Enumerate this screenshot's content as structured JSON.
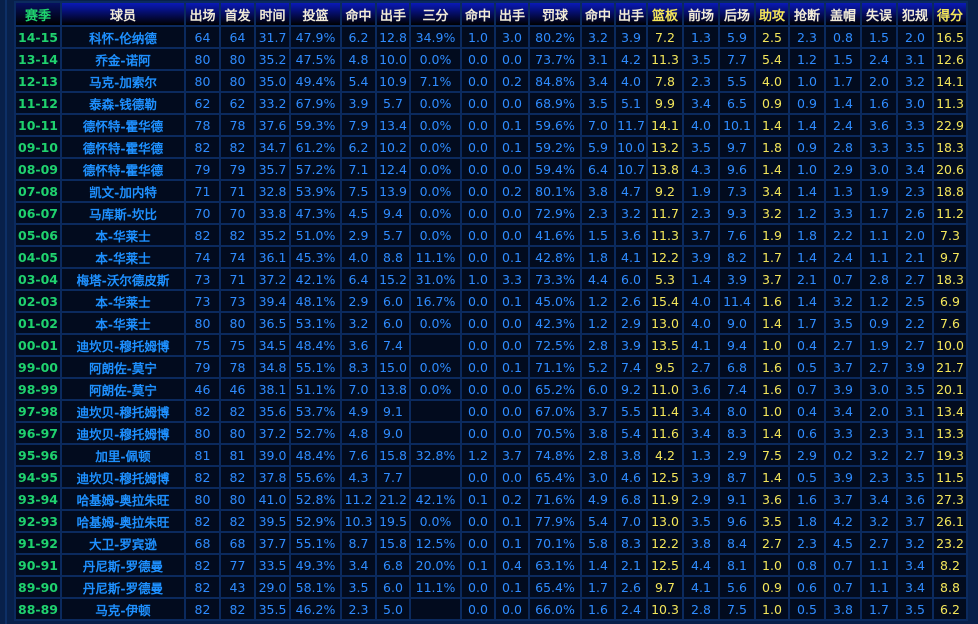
{
  "colors": {
    "season": "#1fd26e",
    "player": "#1e90ff",
    "number": "#2f8cff",
    "highlight": "#f4e65a",
    "background": "#020b1e",
    "grid": "#0b2a5e"
  },
  "table": {
    "headers": [
      "赛季",
      "球员",
      "出场",
      "首发",
      "时间",
      "投篮",
      "命中",
      "出手",
      "三分",
      "命中",
      "出手",
      "罚球",
      "命中",
      "出手",
      "篮板",
      "前场",
      "后场",
      "助攻",
      "抢断",
      "盖帽",
      "失误",
      "犯规",
      "得分"
    ],
    "highlight_columns": [
      "篮板",
      "助攻",
      "得分"
    ],
    "rows": [
      [
        "14-15",
        "科怀-伦纳德",
        "64",
        "64",
        "31.7",
        "47.9%",
        "6.2",
        "12.8",
        "34.9%",
        "1.0",
        "3.0",
        "80.2%",
        "3.2",
        "3.9",
        "7.2",
        "1.3",
        "5.9",
        "2.5",
        "2.3",
        "0.8",
        "1.5",
        "2.0",
        "16.5"
      ],
      [
        "13-14",
        "乔金-诺阿",
        "80",
        "80",
        "35.2",
        "47.5%",
        "4.8",
        "10.0",
        "0.0%",
        "0.0",
        "0.0",
        "73.7%",
        "3.1",
        "4.2",
        "11.3",
        "3.5",
        "7.7",
        "5.4",
        "1.2",
        "1.5",
        "2.4",
        "3.1",
        "12.6"
      ],
      [
        "12-13",
        "马克-加索尔",
        "80",
        "80",
        "35.0",
        "49.4%",
        "5.4",
        "10.9",
        "7.1%",
        "0.0",
        "0.2",
        "84.8%",
        "3.4",
        "4.0",
        "7.8",
        "2.3",
        "5.5",
        "4.0",
        "1.0",
        "1.7",
        "2.0",
        "3.2",
        "14.1"
      ],
      [
        "11-12",
        "泰森-钱德勒",
        "62",
        "62",
        "33.2",
        "67.9%",
        "3.9",
        "5.7",
        "0.0%",
        "0.0",
        "0.0",
        "68.9%",
        "3.5",
        "5.1",
        "9.9",
        "3.4",
        "6.5",
        "0.9",
        "0.9",
        "1.4",
        "1.6",
        "3.0",
        "11.3"
      ],
      [
        "10-11",
        "德怀特-霍华德",
        "78",
        "78",
        "37.6",
        "59.3%",
        "7.9",
        "13.4",
        "0.0%",
        "0.0",
        "0.1",
        "59.6%",
        "7.0",
        "11.7",
        "14.1",
        "4.0",
        "10.1",
        "1.4",
        "1.4",
        "2.4",
        "3.6",
        "3.3",
        "22.9"
      ],
      [
        "09-10",
        "德怀特-霍华德",
        "82",
        "82",
        "34.7",
        "61.2%",
        "6.2",
        "10.2",
        "0.0%",
        "0.0",
        "0.1",
        "59.2%",
        "5.9",
        "10.0",
        "13.2",
        "3.5",
        "9.7",
        "1.8",
        "0.9",
        "2.8",
        "3.3",
        "3.5",
        "18.3"
      ],
      [
        "08-09",
        "德怀特-霍华德",
        "79",
        "79",
        "35.7",
        "57.2%",
        "7.1",
        "12.4",
        "0.0%",
        "0.0",
        "0.0",
        "59.4%",
        "6.4",
        "10.7",
        "13.8",
        "4.3",
        "9.6",
        "1.4",
        "1.0",
        "2.9",
        "3.0",
        "3.4",
        "20.6"
      ],
      [
        "07-08",
        "凯文-加内特",
        "71",
        "71",
        "32.8",
        "53.9%",
        "7.5",
        "13.9",
        "0.0%",
        "0.0",
        "0.2",
        "80.1%",
        "3.8",
        "4.7",
        "9.2",
        "1.9",
        "7.3",
        "3.4",
        "1.4",
        "1.3",
        "1.9",
        "2.3",
        "18.8"
      ],
      [
        "06-07",
        "马库斯-坎比",
        "70",
        "70",
        "33.8",
        "47.3%",
        "4.5",
        "9.4",
        "0.0%",
        "0.0",
        "0.0",
        "72.9%",
        "2.3",
        "3.2",
        "11.7",
        "2.3",
        "9.3",
        "3.2",
        "1.2",
        "3.3",
        "1.7",
        "2.6",
        "11.2"
      ],
      [
        "05-06",
        "本-华莱士",
        "82",
        "82",
        "35.2",
        "51.0%",
        "2.9",
        "5.7",
        "0.0%",
        "0.0",
        "0.0",
        "41.6%",
        "1.5",
        "3.6",
        "11.3",
        "3.7",
        "7.6",
        "1.9",
        "1.8",
        "2.2",
        "1.1",
        "2.0",
        "7.3"
      ],
      [
        "04-05",
        "本-华莱士",
        "74",
        "74",
        "36.1",
        "45.3%",
        "4.0",
        "8.8",
        "11.1%",
        "0.0",
        "0.1",
        "42.8%",
        "1.8",
        "4.1",
        "12.2",
        "3.9",
        "8.2",
        "1.7",
        "1.4",
        "2.4",
        "1.1",
        "2.1",
        "9.7"
      ],
      [
        "03-04",
        "梅塔-沃尔德皮斯",
        "73",
        "71",
        "37.2",
        "42.1%",
        "6.4",
        "15.2",
        "31.0%",
        "1.0",
        "3.3",
        "73.3%",
        "4.4",
        "6.0",
        "5.3",
        "1.4",
        "3.9",
        "3.7",
        "2.1",
        "0.7",
        "2.8",
        "2.7",
        "18.3"
      ],
      [
        "02-03",
        "本-华莱士",
        "73",
        "73",
        "39.4",
        "48.1%",
        "2.9",
        "6.0",
        "16.7%",
        "0.0",
        "0.1",
        "45.0%",
        "1.2",
        "2.6",
        "15.4",
        "4.0",
        "11.4",
        "1.6",
        "1.4",
        "3.2",
        "1.2",
        "2.5",
        "6.9"
      ],
      [
        "01-02",
        "本-华莱士",
        "80",
        "80",
        "36.5",
        "53.1%",
        "3.2",
        "6.0",
        "0.0%",
        "0.0",
        "0.0",
        "42.3%",
        "1.2",
        "2.9",
        "13.0",
        "4.0",
        "9.0",
        "1.4",
        "1.7",
        "3.5",
        "0.9",
        "2.2",
        "7.6"
      ],
      [
        "00-01",
        "迪坎贝-穆托姆博",
        "75",
        "75",
        "34.5",
        "48.4%",
        "3.6",
        "7.4",
        "",
        "0.0",
        "0.0",
        "72.5%",
        "2.8",
        "3.9",
        "13.5",
        "4.1",
        "9.4",
        "1.0",
        "0.4",
        "2.7",
        "1.9",
        "2.7",
        "10.0"
      ],
      [
        "99-00",
        "阿朗佐-莫宁",
        "79",
        "78",
        "34.8",
        "55.1%",
        "8.3",
        "15.0",
        "0.0%",
        "0.0",
        "0.1",
        "71.1%",
        "5.2",
        "7.4",
        "9.5",
        "2.7",
        "6.8",
        "1.6",
        "0.5",
        "3.7",
        "2.7",
        "3.9",
        "21.7"
      ],
      [
        "98-99",
        "阿朗佐-莫宁",
        "46",
        "46",
        "38.1",
        "51.1%",
        "7.0",
        "13.8",
        "0.0%",
        "0.0",
        "0.0",
        "65.2%",
        "6.0",
        "9.2",
        "11.0",
        "3.6",
        "7.4",
        "1.6",
        "0.7",
        "3.9",
        "3.0",
        "3.5",
        "20.1"
      ],
      [
        "97-98",
        "迪坎贝-穆托姆博",
        "82",
        "82",
        "35.6",
        "53.7%",
        "4.9",
        "9.1",
        "",
        "0.0",
        "0.0",
        "67.0%",
        "3.7",
        "5.5",
        "11.4",
        "3.4",
        "8.0",
        "1.0",
        "0.4",
        "3.4",
        "2.0",
        "3.1",
        "13.4"
      ],
      [
        "96-97",
        "迪坎贝-穆托姆博",
        "80",
        "80",
        "37.2",
        "52.7%",
        "4.8",
        "9.0",
        "",
        "0.0",
        "0.0",
        "70.5%",
        "3.8",
        "5.4",
        "11.6",
        "3.4",
        "8.3",
        "1.4",
        "0.6",
        "3.3",
        "2.3",
        "3.1",
        "13.3"
      ],
      [
        "95-96",
        "加里-佩顿",
        "81",
        "81",
        "39.0",
        "48.4%",
        "7.6",
        "15.8",
        "32.8%",
        "1.2",
        "3.7",
        "74.8%",
        "2.8",
        "3.8",
        "4.2",
        "1.3",
        "2.9",
        "7.5",
        "2.9",
        "0.2",
        "3.2",
        "2.7",
        "19.3"
      ],
      [
        "94-95",
        "迪坎贝-穆托姆博",
        "82",
        "82",
        "37.8",
        "55.6%",
        "4.3",
        "7.7",
        "",
        "0.0",
        "0.0",
        "65.4%",
        "3.0",
        "4.6",
        "12.5",
        "3.9",
        "8.7",
        "1.4",
        "0.5",
        "3.9",
        "2.3",
        "3.5",
        "11.5"
      ],
      [
        "93-94",
        "哈基姆-奥拉朱旺",
        "80",
        "80",
        "41.0",
        "52.8%",
        "11.2",
        "21.2",
        "42.1%",
        "0.1",
        "0.2",
        "71.6%",
        "4.9",
        "6.8",
        "11.9",
        "2.9",
        "9.1",
        "3.6",
        "1.6",
        "3.7",
        "3.4",
        "3.6",
        "27.3"
      ],
      [
        "92-93",
        "哈基姆-奥拉朱旺",
        "82",
        "82",
        "39.5",
        "52.9%",
        "10.3",
        "19.5",
        "0.0%",
        "0.0",
        "0.1",
        "77.9%",
        "5.4",
        "7.0",
        "13.0",
        "3.5",
        "9.6",
        "3.5",
        "1.8",
        "4.2",
        "3.2",
        "3.7",
        "26.1"
      ],
      [
        "91-92",
        "大卫-罗宾逊",
        "68",
        "68",
        "37.7",
        "55.1%",
        "8.7",
        "15.8",
        "12.5%",
        "0.0",
        "0.1",
        "70.1%",
        "5.8",
        "8.3",
        "12.2",
        "3.8",
        "8.4",
        "2.7",
        "2.3",
        "4.5",
        "2.7",
        "3.2",
        "23.2"
      ],
      [
        "90-91",
        "丹尼斯-罗德曼",
        "82",
        "77",
        "33.5",
        "49.3%",
        "3.4",
        "6.8",
        "20.0%",
        "0.1",
        "0.4",
        "63.1%",
        "1.4",
        "2.1",
        "12.5",
        "4.4",
        "8.1",
        "1.0",
        "0.8",
        "0.7",
        "1.1",
        "3.4",
        "8.2"
      ],
      [
        "89-90",
        "丹尼斯-罗德曼",
        "82",
        "43",
        "29.0",
        "58.1%",
        "3.5",
        "6.0",
        "11.1%",
        "0.0",
        "0.1",
        "65.4%",
        "1.7",
        "2.6",
        "9.7",
        "4.1",
        "5.6",
        "0.9",
        "0.6",
        "0.7",
        "1.1",
        "3.4",
        "8.8"
      ],
      [
        "88-89",
        "马克-伊顿",
        "82",
        "82",
        "35.5",
        "46.2%",
        "2.3",
        "5.0",
        "",
        "0.0",
        "0.0",
        "66.0%",
        "1.6",
        "2.4",
        "10.3",
        "2.8",
        "7.5",
        "1.0",
        "0.5",
        "3.8",
        "1.7",
        "3.5",
        "6.2"
      ]
    ]
  }
}
